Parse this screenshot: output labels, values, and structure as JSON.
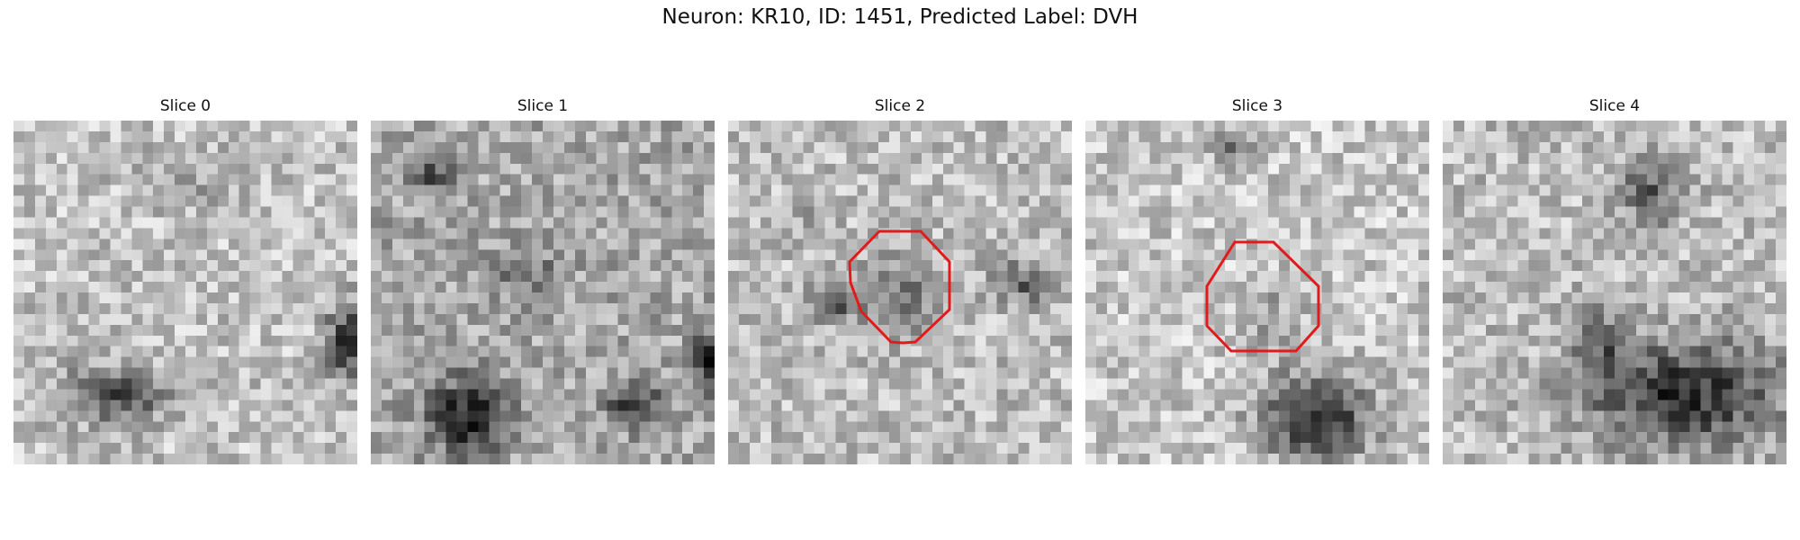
{
  "figure": {
    "title": "Neuron: KR10, ID: 1451, Predicted Label: DVH"
  },
  "panels": [
    {
      "title": "Slice 0",
      "has_roi": false
    },
    {
      "title": "Slice 1",
      "has_roi": false
    },
    {
      "title": "Slice 2",
      "has_roi": true
    },
    {
      "title": "Slice 3",
      "has_roi": true
    },
    {
      "title": "Slice 4",
      "has_roi": false
    }
  ],
  "colors": {
    "roi_outline": "#e11b1b",
    "colormap": "gray"
  }
}
